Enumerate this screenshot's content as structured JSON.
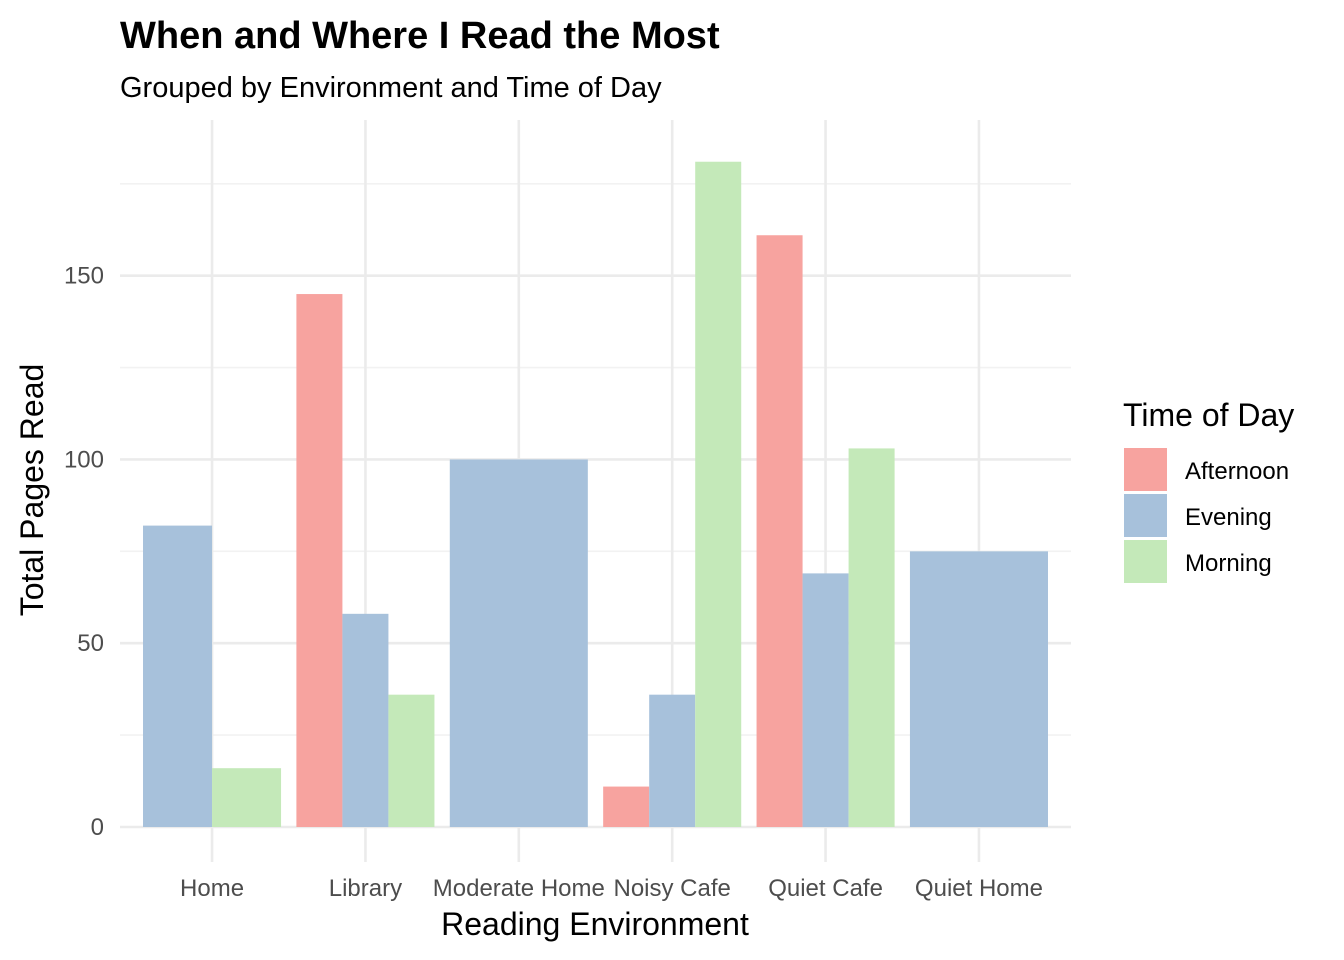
{
  "chart_data": {
    "type": "bar",
    "title": "When and Where I Read the Most",
    "subtitle": "Grouped by Environment and Time of Day",
    "xlabel": "Reading Environment",
    "ylabel": "Total Pages Read",
    "ylim": [
      0,
      188
    ],
    "yticks": [
      0,
      50,
      100,
      150
    ],
    "grid": true,
    "legend": {
      "title": "Time of Day",
      "position": "right"
    },
    "categories": [
      "Home",
      "Library",
      "Moderate Home",
      "Noisy Cafe",
      "Quiet Cafe",
      "Quiet Home"
    ],
    "series": [
      {
        "name": "Afternoon",
        "color": "#F7A39F",
        "values": [
          null,
          145,
          null,
          11,
          161,
          null
        ]
      },
      {
        "name": "Evening",
        "color": "#A7C1DB",
        "values": [
          82,
          58,
          100,
          36,
          69,
          75
        ]
      },
      {
        "name": "Morning",
        "color": "#C4E9B9",
        "values": [
          16,
          36,
          null,
          181,
          103,
          null
        ]
      }
    ]
  }
}
